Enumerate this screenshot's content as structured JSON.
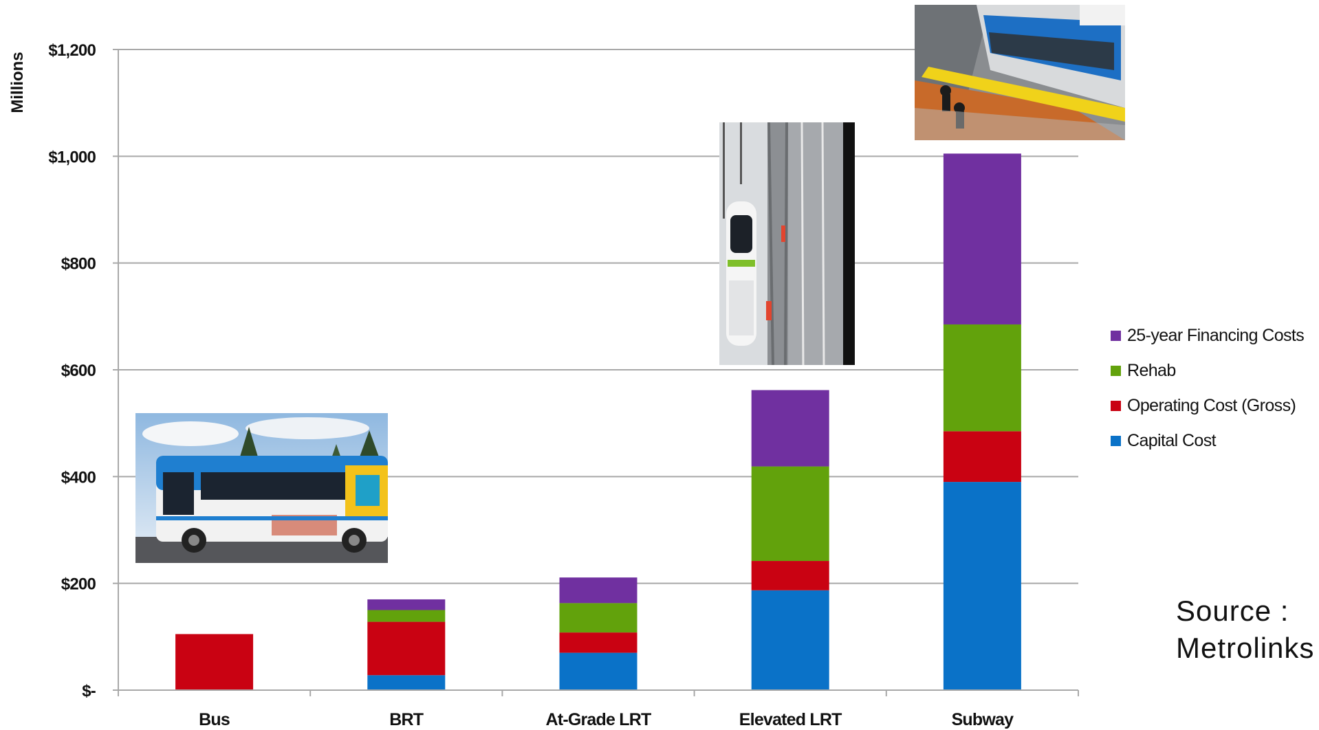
{
  "chart_data": {
    "type": "bar",
    "stacked": true,
    "title": "",
    "xlabel": "",
    "ylabel": "Millions",
    "ylim": [
      0,
      1200
    ],
    "yticks": [
      {
        "value": 0,
        "label": "$-"
      },
      {
        "value": 200,
        "label": "$200"
      },
      {
        "value": 400,
        "label": "$400"
      },
      {
        "value": 600,
        "label": "$600"
      },
      {
        "value": 800,
        "label": "$800"
      },
      {
        "value": 1000,
        "label": "$1,000"
      },
      {
        "value": 1200,
        "label": "$1,200"
      }
    ],
    "grid": true,
    "legend_position": "right",
    "categories": [
      "Bus",
      "BRT",
      "At-Grade LRT",
      "Elevated LRT",
      "Subway"
    ],
    "series": [
      {
        "name": "Capital Cost",
        "color": "#0a72c8",
        "values": [
          0,
          28,
          70,
          187,
          390
        ]
      },
      {
        "name": "Operating Cost (Gross)",
        "color": "#c90212",
        "values": [
          105,
          100,
          38,
          55,
          95
        ]
      },
      {
        "name": "Rehab",
        "color": "#62a20c",
        "values": [
          0,
          22,
          55,
          177,
          200
        ]
      },
      {
        "name": "25-year Financing Costs",
        "color": "#7030a0",
        "values": [
          0,
          20,
          48,
          143,
          320
        ]
      }
    ],
    "legend_order": [
      "25-year Financing Costs",
      "Rehab",
      "Operating Cost (Gross)",
      "Capital Cost"
    ]
  },
  "source_text": "Source :\nMetrolinks",
  "photos": [
    {
      "name": "bus-photo",
      "subject": "city-bus"
    },
    {
      "name": "elevated-lrt-photo",
      "subject": "elevated-light-rail-train"
    },
    {
      "name": "subway-photo",
      "subject": "subway-train-platform"
    }
  ]
}
